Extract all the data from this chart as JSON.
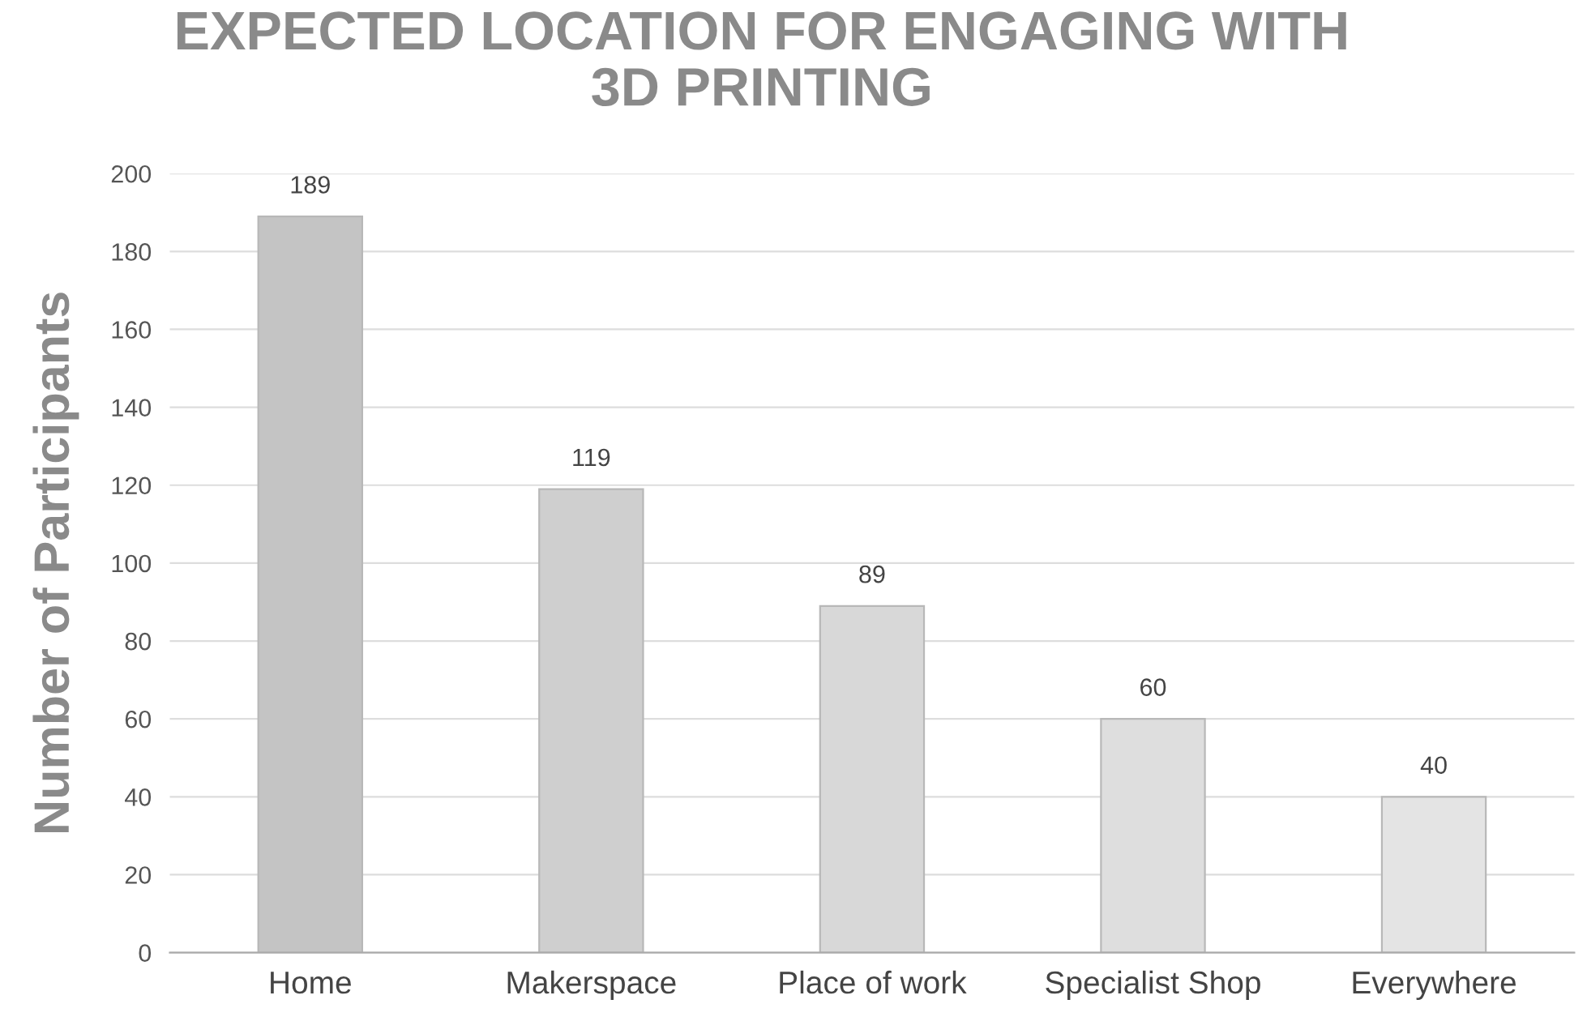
{
  "chart_data": {
    "type": "bar",
    "title": "EXPECTED LOCATION FOR ENGAGING WITH\n3D PRINTING",
    "ylabel": "Number of Participants",
    "categories": [
      "Home",
      "Makerspace",
      "Place of work",
      "Specialist Shop",
      "Everywhere"
    ],
    "values": [
      189,
      119,
      89,
      60,
      40
    ],
    "colors": [
      "#c4c4c4",
      "#cfcfcf",
      "#d8d8d8",
      "#dedede",
      "#e4e4e4"
    ],
    "ylim": [
      0,
      200
    ],
    "yticks": [
      0,
      20,
      40,
      60,
      80,
      100,
      120,
      140,
      160,
      180,
      200
    ],
    "grid": "y",
    "data_labels": true
  }
}
